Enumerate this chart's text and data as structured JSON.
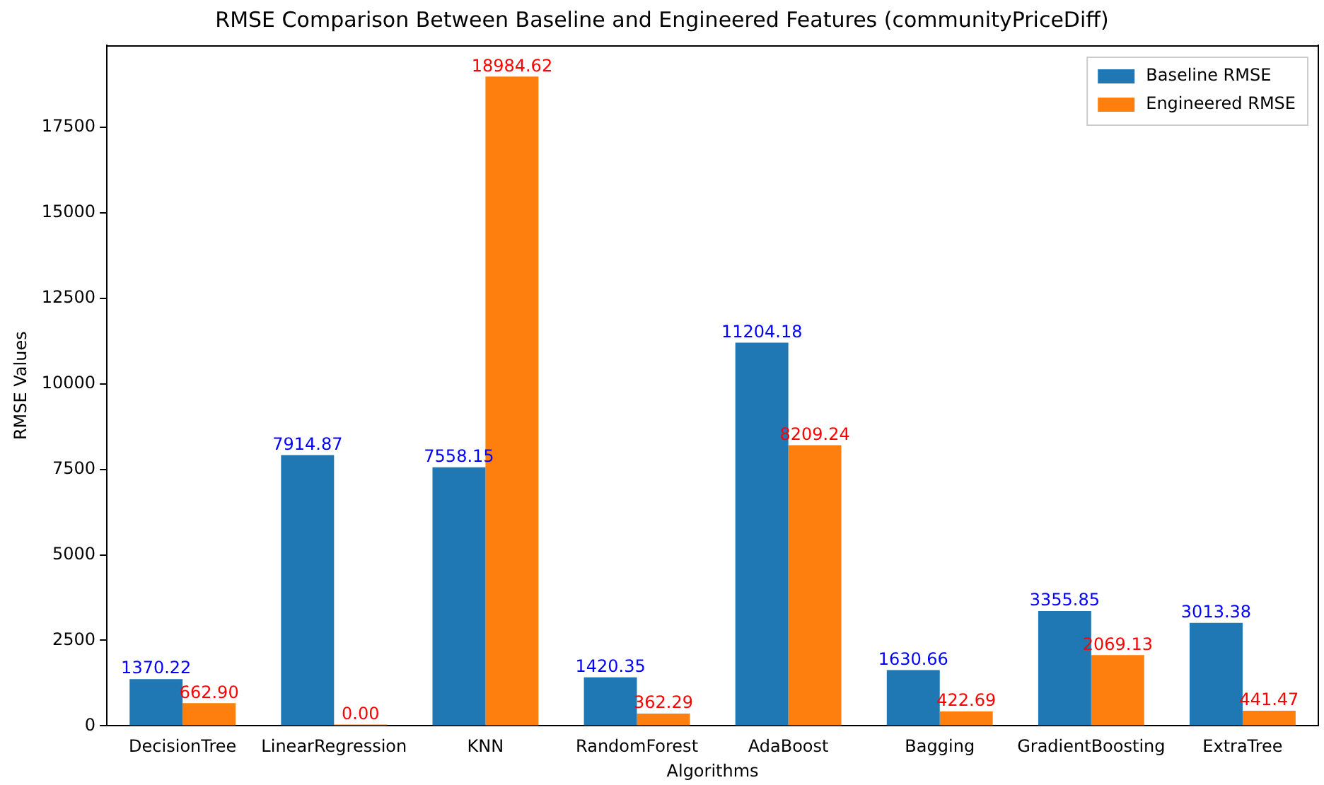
{
  "chart_data": {
    "type": "bar",
    "title": "RMSE Comparison Between Baseline and Engineered Features (communityPriceDiff)",
    "xlabel": "Algorithms",
    "ylabel": "RMSE Values",
    "categories": [
      "DecisionTree",
      "LinearRegression",
      "KNN",
      "RandomForest",
      "AdaBoost",
      "Bagging",
      "GradientBoosting",
      "ExtraTree"
    ],
    "series": [
      {
        "name": "Baseline RMSE",
        "color": "#1f77b4",
        "values": [
          1370.22,
          7914.87,
          7558.15,
          1420.35,
          11204.18,
          1630.66,
          3355.85,
          3013.38
        ],
        "value_labels": [
          "1370.22",
          "7914.87",
          "7558.15",
          "1420.35",
          "11204.18",
          "1630.66",
          "3355.85",
          "3013.38"
        ]
      },
      {
        "name": "Engineered RMSE",
        "color": "#ff7f0e",
        "values": [
          662.9,
          0.0,
          18984.62,
          362.29,
          8209.24,
          422.69,
          2069.13,
          441.47
        ],
        "value_labels": [
          "662.90",
          "0.00",
          "18984.62",
          "362.29",
          "8209.24",
          "422.69",
          "2069.13",
          "441.47"
        ]
      }
    ],
    "ylim": [
      0,
      19900
    ],
    "yticks": [
      0,
      2500,
      5000,
      7500,
      10000,
      12500,
      15000,
      17500
    ],
    "grid": false,
    "legend": "top right"
  }
}
